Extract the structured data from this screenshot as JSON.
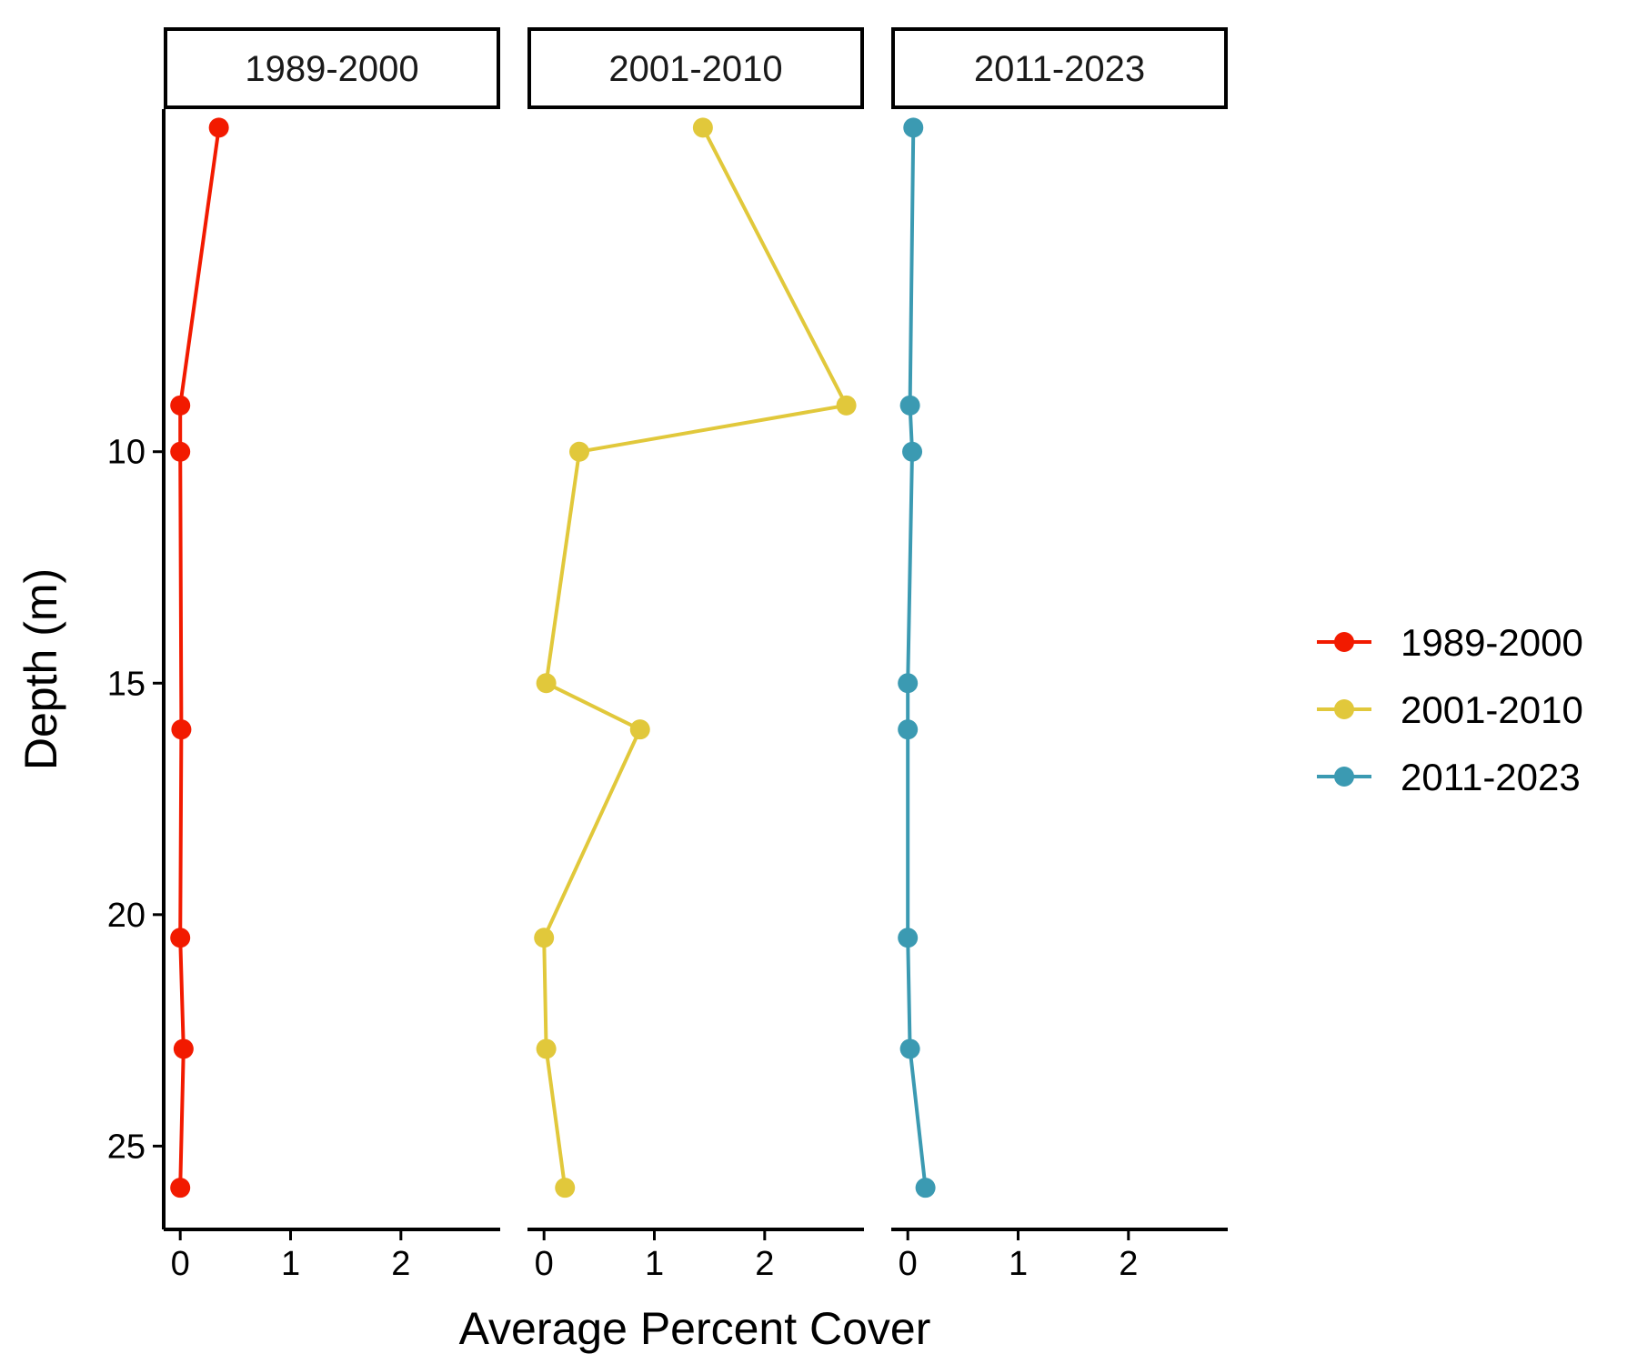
{
  "chart_data": {
    "type": "line",
    "xlabel": "Average Percent Cover",
    "ylabel": "Depth (m)",
    "xlim": [
      -0.15,
      2.9
    ],
    "ylim": [
      26.8,
      2.6
    ],
    "x_ticks": [
      0,
      1,
      2
    ],
    "y_ticks": [
      10,
      15,
      20,
      25
    ],
    "y_reversed": true,
    "grid": false,
    "legend_position": "right",
    "panels": [
      {
        "label": "1989-2000",
        "color": "#F21A00",
        "points": [
          {
            "depth": 3,
            "cover": 0.35
          },
          {
            "depth": 9,
            "cover": 0.0
          },
          {
            "depth": 10,
            "cover": 0.0
          },
          {
            "depth": 16,
            "cover": 0.01
          },
          {
            "depth": 20.5,
            "cover": 0.0
          },
          {
            "depth": 22.9,
            "cover": 0.03
          },
          {
            "depth": 25.9,
            "cover": 0.0
          }
        ]
      },
      {
        "label": "2001-2010",
        "color": "#E1C83B",
        "points": [
          {
            "depth": 3,
            "cover": 1.44
          },
          {
            "depth": 9,
            "cover": 2.74
          },
          {
            "depth": 10,
            "cover": 0.32
          },
          {
            "depth": 15,
            "cover": 0.02
          },
          {
            "depth": 16,
            "cover": 0.87
          },
          {
            "depth": 20.5,
            "cover": 0.0
          },
          {
            "depth": 22.9,
            "cover": 0.02
          },
          {
            "depth": 25.9,
            "cover": 0.19
          }
        ]
      },
      {
        "label": "2011-2023",
        "color": "#3B9AB2",
        "points": [
          {
            "depth": 3,
            "cover": 0.05
          },
          {
            "depth": 9,
            "cover": 0.02
          },
          {
            "depth": 10,
            "cover": 0.04
          },
          {
            "depth": 15,
            "cover": 0.0
          },
          {
            "depth": 16,
            "cover": 0.0
          },
          {
            "depth": 20.5,
            "cover": 0.0
          },
          {
            "depth": 22.9,
            "cover": 0.02
          },
          {
            "depth": 25.9,
            "cover": 0.16
          }
        ]
      }
    ],
    "legend": [
      "1989-2000",
      "2001-2010",
      "2011-2023"
    ]
  }
}
